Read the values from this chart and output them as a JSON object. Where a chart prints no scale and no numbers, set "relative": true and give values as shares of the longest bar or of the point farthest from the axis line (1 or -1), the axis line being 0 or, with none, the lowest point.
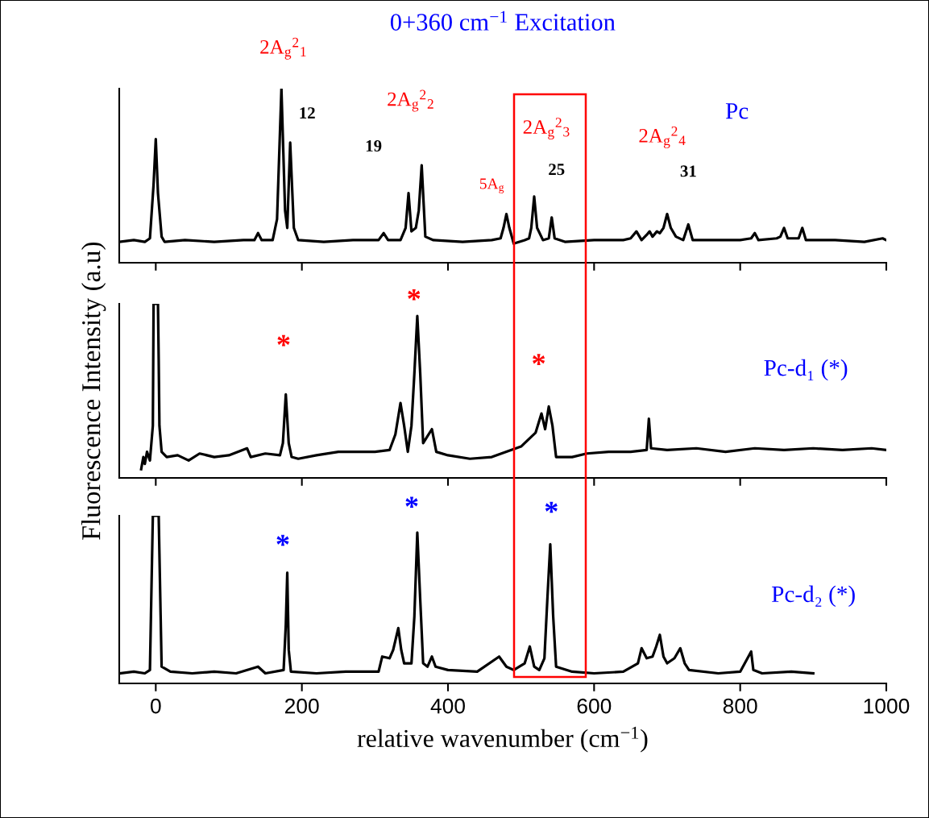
{
  "chart_data": [
    {
      "type": "line",
      "title": "0+360 cm$^{−1}$ Excitation",
      "relative": true,
      "xlim": [
        -50,
        1000
      ],
      "xticks": [
        0,
        200,
        400,
        600,
        800,
        1000
      ],
      "tick_labels": false,
      "grid": false,
      "legend": false,
      "series": [
        {
          "name": "Pc",
          "color": "#000000",
          "x": [
            -50,
            -30,
            -15,
            -8,
            -3,
            0,
            3,
            8,
            12,
            40,
            80,
            120,
            135,
            140,
            145,
            160,
            166,
            172,
            177,
            180,
            184,
            189,
            195,
            230,
            270,
            305,
            312,
            318,
            335,
            342,
            346,
            350,
            356,
            360,
            364,
            369,
            380,
            420,
            460,
            472,
            476,
            480,
            484,
            490,
            505,
            511,
            514,
            518,
            522,
            530,
            538,
            542,
            546,
            560,
            600,
            640,
            650,
            658,
            665,
            672,
            676,
            680,
            686,
            690,
            695,
            700,
            705,
            712,
            722,
            729,
            735,
            760,
            800,
            815,
            820,
            825,
            850,
            855,
            860,
            865,
            880,
            885,
            890,
            930,
            970,
            995,
            1000
          ],
          "values": [
            0.12,
            0.13,
            0.12,
            0.14,
            0.45,
            0.71,
            0.4,
            0.15,
            0.12,
            0.13,
            0.12,
            0.13,
            0.13,
            0.17,
            0.13,
            0.13,
            0.25,
            1.0,
            0.3,
            0.2,
            0.69,
            0.2,
            0.13,
            0.12,
            0.13,
            0.13,
            0.17,
            0.13,
            0.13,
            0.2,
            0.4,
            0.18,
            0.2,
            0.3,
            0.56,
            0.15,
            0.13,
            0.12,
            0.13,
            0.14,
            0.2,
            0.28,
            0.2,
            0.11,
            0.13,
            0.14,
            0.2,
            0.38,
            0.2,
            0.13,
            0.14,
            0.26,
            0.14,
            0.12,
            0.13,
            0.13,
            0.14,
            0.18,
            0.13,
            0.16,
            0.18,
            0.15,
            0.18,
            0.17,
            0.2,
            0.28,
            0.2,
            0.15,
            0.13,
            0.22,
            0.13,
            0.13,
            0.13,
            0.14,
            0.17,
            0.13,
            0.14,
            0.15,
            0.2,
            0.14,
            0.14,
            0.2,
            0.13,
            0.13,
            0.12,
            0.14,
            0.13
          ]
        }
      ],
      "annotations": [
        "2A$_{g}$$^{2}$$_{1}$",
        {
          "text": "12",
          "x": 172,
          "y": 1.0
        },
        "2A$_{g}$$^{2}$$_{2}$",
        {
          "text": "19",
          "x": 364,
          "y": 0.56
        },
        {
          "text": "5A$_{g}$",
          "x": 480,
          "y": 0.28
        },
        "2A$_{g}$$^{2}$$_{3}$",
        {
          "text": "25",
          "x": 518,
          "y": 0.38
        },
        "2A$_{g}$$^{2}$$_{4}$",
        {
          "text": "31",
          "x": 700,
          "y": 0.28
        }
      ]
    },
    {
      "type": "line",
      "ylabel": "Fluorescence Intensity (a.u)",
      "relative": true,
      "xlim": [
        -50,
        1000
      ],
      "xticks": [
        0,
        200,
        400,
        600,
        800,
        1000
      ],
      "tick_labels": false,
      "grid": false,
      "legend": false,
      "series": [
        {
          "name": "Pc-d₁ (*)",
          "color": "#000000",
          "x": [
            -20,
            -17,
            -15,
            -12,
            -8,
            -4,
            -3,
            3,
            4,
            5,
            8,
            15,
            30,
            45,
            60,
            80,
            100,
            125,
            130,
            150,
            170,
            174,
            178,
            182,
            186,
            195,
            220,
            250,
            280,
            300,
            320,
            328,
            335,
            340,
            345,
            350,
            354,
            358,
            362,
            366,
            372,
            378,
            384,
            400,
            430,
            460,
            480,
            500,
            515,
            520,
            528,
            533,
            538,
            543,
            548,
            570,
            590,
            620,
            650,
            672,
            675,
            678,
            700,
            740,
            780,
            820,
            860,
            900,
            940,
            980,
            1000
          ],
          "values": [
            0.05,
            0.12,
            0.08,
            0.15,
            0.1,
            0.3,
            1.0,
            1.0,
            0.68,
            0.3,
            0.15,
            0.12,
            0.13,
            0.1,
            0.14,
            0.12,
            0.13,
            0.17,
            0.12,
            0.14,
            0.13,
            0.2,
            0.48,
            0.2,
            0.12,
            0.11,
            0.13,
            0.15,
            0.15,
            0.15,
            0.16,
            0.25,
            0.43,
            0.3,
            0.15,
            0.3,
            0.6,
            0.93,
            0.6,
            0.2,
            0.24,
            0.28,
            0.15,
            0.13,
            0.11,
            0.12,
            0.15,
            0.18,
            0.24,
            0.26,
            0.37,
            0.28,
            0.41,
            0.3,
            0.12,
            0.12,
            0.14,
            0.15,
            0.15,
            0.16,
            0.34,
            0.17,
            0.16,
            0.17,
            0.15,
            0.17,
            0.16,
            0.17,
            0.16,
            0.17,
            0.16
          ]
        }
      ],
      "annotations": [
        {
          "text": "*",
          "x": 178,
          "y": 0.48
        },
        {
          "text": "*",
          "x": 358,
          "y": 0.93
        },
        {
          "text": "*",
          "x": 538,
          "y": 0.41
        }
      ]
    },
    {
      "type": "line",
      "xlabel": "relative wavenumber (cm$^{−1}$)",
      "relative": true,
      "xlim": [
        -50,
        1000
      ],
      "xticks": [
        0,
        200,
        400,
        600,
        800,
        1000
      ],
      "tick_labels": "x",
      "grid": false,
      "legend": false,
      "series": [
        {
          "name": "Pc-d₂ (*)",
          "color": "#000000",
          "x": [
            -50,
            -30,
            -15,
            -8,
            -4,
            4,
            8,
            20,
            50,
            80,
            110,
            140,
            150,
            175,
            178,
            180,
            182,
            185,
            220,
            260,
            305,
            310,
            320,
            325,
            332,
            336,
            340,
            350,
            354,
            358,
            362,
            366,
            372,
            378,
            383,
            400,
            440,
            470,
            480,
            490,
            505,
            512,
            518,
            525,
            532,
            536,
            540,
            544,
            548,
            570,
            600,
            640,
            660,
            665,
            672,
            680,
            685,
            690,
            695,
            700,
            710,
            718,
            724,
            730,
            770,
            800,
            815,
            818,
            830,
            870,
            900
          ],
          "values": [
            0.06,
            0.07,
            0.06,
            0.08,
            1.0,
            1.0,
            0.1,
            0.07,
            0.06,
            0.07,
            0.06,
            0.1,
            0.06,
            0.08,
            0.35,
            0.66,
            0.2,
            0.07,
            0.06,
            0.07,
            0.07,
            0.16,
            0.15,
            0.2,
            0.33,
            0.2,
            0.12,
            0.12,
            0.4,
            0.9,
            0.5,
            0.12,
            0.1,
            0.16,
            0.1,
            0.08,
            0.07,
            0.16,
            0.1,
            0.08,
            0.12,
            0.22,
            0.1,
            0.08,
            0.15,
            0.5,
            0.83,
            0.4,
            0.1,
            0.07,
            0.06,
            0.07,
            0.12,
            0.21,
            0.15,
            0.16,
            0.22,
            0.29,
            0.16,
            0.12,
            0.15,
            0.21,
            0.12,
            0.08,
            0.06,
            0.07,
            0.19,
            0.08,
            0.06,
            0.07,
            0.06
          ]
        }
      ],
      "annotations": [
        {
          "text": "*",
          "x": 180,
          "y": 0.66
        },
        {
          "text": "*",
          "x": 358,
          "y": 0.9
        },
        {
          "text": "*",
          "x": 540,
          "y": 0.83
        }
      ]
    }
  ]
}
